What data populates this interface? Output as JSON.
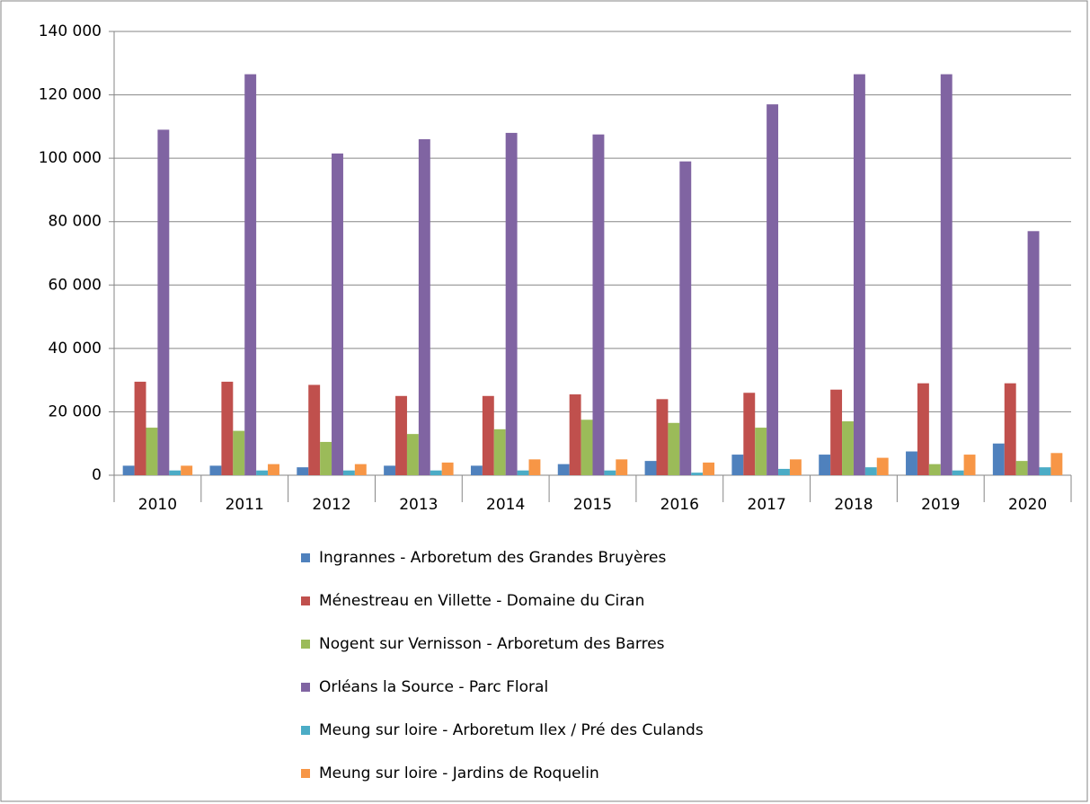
{
  "chart_data": {
    "type": "bar",
    "categories": [
      "2010",
      "2011",
      "2012",
      "2013",
      "2014",
      "2015",
      "2016",
      "2017",
      "2018",
      "2019",
      "2020"
    ],
    "series": [
      {
        "name": "Ingrannes - Arboretum des Grandes Bruyères",
        "color": "#4f81bd",
        "values": [
          3000,
          3000,
          2500,
          3000,
          3000,
          3500,
          4500,
          6500,
          6500,
          7500,
          10000
        ]
      },
      {
        "name": "Ménestreau en Villette - Domaine du Ciran",
        "color": "#c0504d",
        "values": [
          29500,
          29500,
          28500,
          25000,
          25000,
          25500,
          24000,
          26000,
          27000,
          29000,
          29000
        ]
      },
      {
        "name": "Nogent sur Vernisson - Arboretum des Barres",
        "color": "#9bbb59",
        "values": [
          15000,
          14000,
          10500,
          13000,
          14500,
          17500,
          16500,
          15000,
          17000,
          3500,
          4500
        ]
      },
      {
        "name": "Orléans la Source - Parc Floral",
        "color": "#8064a2",
        "values": [
          109000,
          126500,
          101500,
          106000,
          108000,
          107500,
          99000,
          117000,
          126500,
          126500,
          77000
        ]
      },
      {
        "name": "Meung sur loire - Arboretum Ilex / Pré des Culands",
        "color": "#4bacc6",
        "values": [
          1500,
          1500,
          1500,
          1500,
          1500,
          1500,
          800,
          2000,
          2500,
          1500,
          2500
        ]
      },
      {
        "name": "Meung sur loire - Jardins de Roquelin",
        "color": "#f79646",
        "values": [
          3000,
          3500,
          3500,
          4000,
          5000,
          5000,
          4000,
          5000,
          5500,
          6500,
          7000
        ]
      }
    ],
    "ylim": [
      0,
      140000
    ],
    "yticks": [
      0,
      {
        "value": 20000,
        "label": "20 000"
      },
      {
        "value": 40000,
        "label": "40 000"
      },
      {
        "value": 60000,
        "label": "60 000"
      },
      {
        "value": 80000,
        "label": "80 000"
      },
      {
        "value": 100000,
        "label": "100 000"
      },
      {
        "value": 120000,
        "label": "120 000"
      },
      {
        "value": 140000,
        "label": "140 000"
      }
    ],
    "grid": true,
    "legend": "bottom"
  }
}
